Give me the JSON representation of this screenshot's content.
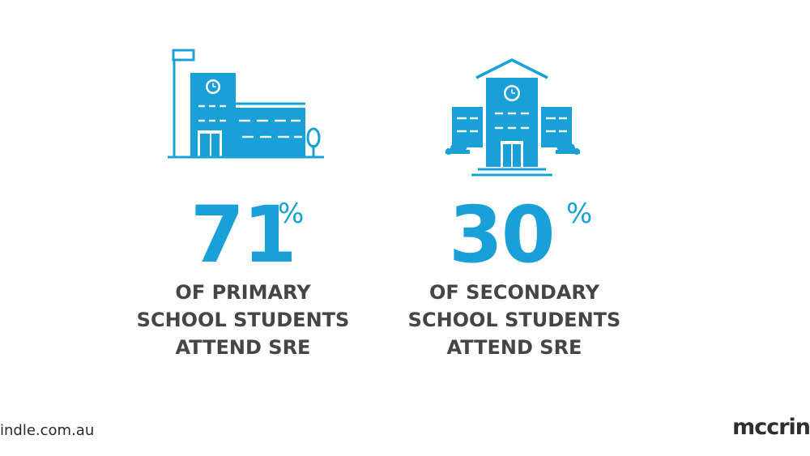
{
  "stats": [
    {
      "value": "71",
      "unit": "%",
      "caption_lines": [
        "OF PRIMARY",
        "SCHOOL STUDENTS",
        "ATTEND SRE"
      ],
      "icon": "primary-school-icon"
    },
    {
      "value": "30",
      "unit": "%",
      "caption_lines": [
        "OF SECONDARY",
        "SCHOOL STUDENTS",
        "ATTEND SRE"
      ],
      "icon": "secondary-school-icon"
    }
  ],
  "footer": {
    "url": "indle.com.au",
    "logo": "mccrin"
  },
  "colors": {
    "accent": "#1aa0d8",
    "text": "#454545"
  }
}
